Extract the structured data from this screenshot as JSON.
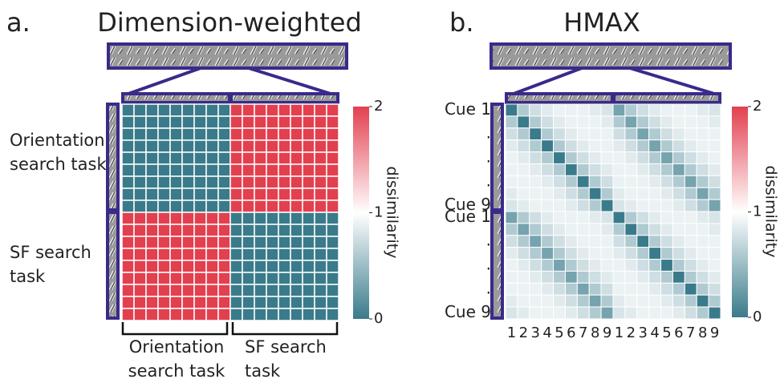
{
  "chart_data": [
    {
      "type": "heatmap",
      "panel_label": "a.",
      "title": "Dimension-weighted",
      "row_labels": [
        "Orientation search task",
        "SF search task"
      ],
      "col_labels": [
        "Orientation search task",
        "SF search task"
      ],
      "matrix": [
        [
          0,
          0,
          0,
          0,
          0,
          0,
          0,
          0,
          0,
          2,
          2,
          2,
          2,
          2,
          2,
          2,
          2,
          2
        ],
        [
          0,
          0,
          0,
          0,
          0,
          0,
          0,
          0,
          0,
          2,
          2,
          2,
          2,
          2,
          2,
          2,
          2,
          2
        ],
        [
          0,
          0,
          0,
          0,
          0,
          0,
          0,
          0,
          0,
          2,
          2,
          2,
          2,
          2,
          2,
          2,
          2,
          2
        ],
        [
          0,
          0,
          0,
          0,
          0,
          0,
          0,
          0,
          0,
          2,
          2,
          2,
          2,
          2,
          2,
          2,
          2,
          2
        ],
        [
          0,
          0,
          0,
          0,
          0,
          0,
          0,
          0,
          0,
          2,
          2,
          2,
          2,
          2,
          2,
          2,
          2,
          2
        ],
        [
          0,
          0,
          0,
          0,
          0,
          0,
          0,
          0,
          0,
          2,
          2,
          2,
          2,
          2,
          2,
          2,
          2,
          2
        ],
        [
          0,
          0,
          0,
          0,
          0,
          0,
          0,
          0,
          0,
          2,
          2,
          2,
          2,
          2,
          2,
          2,
          2,
          2
        ],
        [
          0,
          0,
          0,
          0,
          0,
          0,
          0,
          0,
          0,
          2,
          2,
          2,
          2,
          2,
          2,
          2,
          2,
          2
        ],
        [
          0,
          0,
          0,
          0,
          0,
          0,
          0,
          0,
          0,
          2,
          2,
          2,
          2,
          2,
          2,
          2,
          2,
          2
        ],
        [
          2,
          2,
          2,
          2,
          2,
          2,
          2,
          2,
          2,
          0,
          0,
          0,
          0,
          0,
          0,
          0,
          0,
          0
        ],
        [
          2,
          2,
          2,
          2,
          2,
          2,
          2,
          2,
          2,
          0,
          0,
          0,
          0,
          0,
          0,
          0,
          0,
          0
        ],
        [
          2,
          2,
          2,
          2,
          2,
          2,
          2,
          2,
          2,
          0,
          0,
          0,
          0,
          0,
          0,
          0,
          0,
          0
        ],
        [
          2,
          2,
          2,
          2,
          2,
          2,
          2,
          2,
          2,
          0,
          0,
          0,
          0,
          0,
          0,
          0,
          0,
          0
        ],
        [
          2,
          2,
          2,
          2,
          2,
          2,
          2,
          2,
          2,
          0,
          0,
          0,
          0,
          0,
          0,
          0,
          0,
          0
        ],
        [
          2,
          2,
          2,
          2,
          2,
          2,
          2,
          2,
          2,
          0,
          0,
          0,
          0,
          0,
          0,
          0,
          0,
          0
        ],
        [
          2,
          2,
          2,
          2,
          2,
          2,
          2,
          2,
          2,
          0,
          0,
          0,
          0,
          0,
          0,
          0,
          0,
          0
        ],
        [
          2,
          2,
          2,
          2,
          2,
          2,
          2,
          2,
          2,
          0,
          0,
          0,
          0,
          0,
          0,
          0,
          0,
          0
        ],
        [
          2,
          2,
          2,
          2,
          2,
          2,
          2,
          2,
          2,
          0,
          0,
          0,
          0,
          0,
          0,
          0,
          0,
          0
        ]
      ],
      "zlim": [
        0,
        2
      ],
      "zticks": [
        0,
        1,
        2
      ],
      "colorbar_label": "dissimilarity",
      "colors": [
        "#3a7b8b",
        "#ffffff",
        "#e2404f"
      ]
    },
    {
      "type": "heatmap",
      "panel_label": "b.",
      "title": "HMAX",
      "y_labels": [
        "Cue 1",
        null,
        ".",
        null,
        ".",
        null,
        ".",
        null,
        "Cue 9",
        "Cue 1",
        null,
        ".",
        null,
        ".",
        null,
        ".",
        null,
        "Cue 9"
      ],
      "x_labels": [
        "1",
        "2",
        "3",
        "4",
        "5",
        "6",
        "7",
        "8",
        "9",
        "1",
        "2",
        "3",
        "4",
        "5",
        "6",
        "7",
        "8",
        "9"
      ],
      "matrix": [
        [
          0,
          0.6,
          0.75,
          0.85,
          0.9,
          0.9,
          0.9,
          0.85,
          0.8,
          0.3,
          0.6,
          0.75,
          0.85,
          0.9,
          0.9,
          0.9,
          0.85,
          0.8
        ],
        [
          0.6,
          0,
          0.6,
          0.75,
          0.85,
          0.9,
          0.9,
          0.9,
          0.85,
          0.6,
          0.3,
          0.6,
          0.75,
          0.85,
          0.9,
          0.9,
          0.9,
          0.85
        ],
        [
          0.75,
          0.6,
          0,
          0.6,
          0.75,
          0.85,
          0.9,
          0.9,
          0.9,
          0.75,
          0.6,
          0.3,
          0.6,
          0.75,
          0.85,
          0.9,
          0.9,
          0.9
        ],
        [
          0.85,
          0.75,
          0.6,
          0,
          0.6,
          0.75,
          0.85,
          0.9,
          0.9,
          0.85,
          0.75,
          0.6,
          0.3,
          0.6,
          0.75,
          0.85,
          0.9,
          0.9
        ],
        [
          0.9,
          0.85,
          0.75,
          0.6,
          0,
          0.6,
          0.75,
          0.85,
          0.9,
          0.9,
          0.85,
          0.75,
          0.6,
          0.3,
          0.6,
          0.75,
          0.85,
          0.9
        ],
        [
          0.9,
          0.9,
          0.85,
          0.75,
          0.6,
          0,
          0.6,
          0.75,
          0.85,
          0.9,
          0.9,
          0.85,
          0.75,
          0.6,
          0.3,
          0.6,
          0.75,
          0.85
        ],
        [
          0.9,
          0.9,
          0.9,
          0.85,
          0.75,
          0.6,
          0,
          0.6,
          0.75,
          0.9,
          0.9,
          0.9,
          0.85,
          0.75,
          0.6,
          0.3,
          0.6,
          0.75
        ],
        [
          0.85,
          0.9,
          0.9,
          0.9,
          0.85,
          0.75,
          0.6,
          0,
          0.6,
          0.85,
          0.9,
          0.9,
          0.9,
          0.85,
          0.75,
          0.6,
          0.3,
          0.6
        ],
        [
          0.8,
          0.85,
          0.9,
          0.9,
          0.9,
          0.85,
          0.75,
          0.6,
          0,
          0.8,
          0.85,
          0.9,
          0.9,
          0.9,
          0.85,
          0.75,
          0.6,
          0.3
        ],
        [
          0.3,
          0.6,
          0.75,
          0.85,
          0.9,
          0.9,
          0.9,
          0.85,
          0.8,
          0,
          0.6,
          0.75,
          0.85,
          0.9,
          0.9,
          0.9,
          0.85,
          0.8
        ],
        [
          0.6,
          0.3,
          0.6,
          0.75,
          0.85,
          0.9,
          0.9,
          0.9,
          0.85,
          0.6,
          0,
          0.6,
          0.75,
          0.85,
          0.9,
          0.9,
          0.9,
          0.85
        ],
        [
          0.75,
          0.6,
          0.3,
          0.6,
          0.75,
          0.85,
          0.9,
          0.9,
          0.9,
          0.75,
          0.6,
          0,
          0.6,
          0.75,
          0.85,
          0.9,
          0.9,
          0.9
        ],
        [
          0.85,
          0.75,
          0.6,
          0.3,
          0.6,
          0.75,
          0.85,
          0.9,
          0.9,
          0.85,
          0.75,
          0.6,
          0,
          0.6,
          0.75,
          0.85,
          0.9,
          0.9
        ],
        [
          0.9,
          0.85,
          0.75,
          0.6,
          0.3,
          0.6,
          0.75,
          0.85,
          0.9,
          0.9,
          0.85,
          0.75,
          0.6,
          0,
          0.6,
          0.75,
          0.85,
          0.9
        ],
        [
          0.9,
          0.9,
          0.85,
          0.75,
          0.6,
          0.3,
          0.6,
          0.75,
          0.85,
          0.9,
          0.9,
          0.85,
          0.75,
          0.6,
          0,
          0.6,
          0.75,
          0.85
        ],
        [
          0.9,
          0.9,
          0.9,
          0.85,
          0.75,
          0.6,
          0.3,
          0.6,
          0.75,
          0.9,
          0.9,
          0.9,
          0.85,
          0.75,
          0.6,
          0,
          0.6,
          0.75
        ],
        [
          0.85,
          0.9,
          0.9,
          0.9,
          0.85,
          0.75,
          0.6,
          0.3,
          0.6,
          0.85,
          0.9,
          0.9,
          0.9,
          0.85,
          0.75,
          0.6,
          0,
          0.6
        ],
        [
          0.8,
          0.85,
          0.9,
          0.9,
          0.9,
          0.85,
          0.75,
          0.6,
          0.3,
          0.8,
          0.85,
          0.9,
          0.9,
          0.9,
          0.85,
          0.75,
          0.6,
          0
        ]
      ],
      "zlim": [
        0,
        2
      ],
      "zticks": [
        0,
        1,
        2
      ],
      "colorbar_label": "dissimilarity",
      "colors": [
        "#3a7b8b",
        "#ffffff",
        "#e2404f"
      ]
    }
  ]
}
